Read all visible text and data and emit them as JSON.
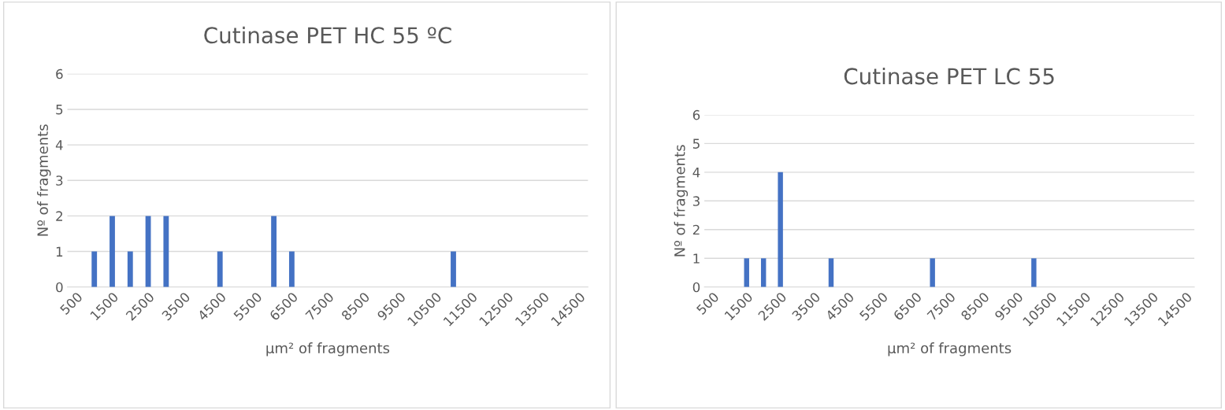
{
  "chart_data": [
    {
      "type": "bar",
      "title": "Cutinase PET HC 55 ºC",
      "xlabel": "μm² of fragments",
      "ylabel": "Nº of fragments",
      "color": "#4472c4",
      "categories": [
        "500",
        null,
        "1500",
        null,
        "2500",
        null,
        "3500",
        null,
        "4500",
        null,
        "5500",
        null,
        "6500",
        null,
        "7500",
        null,
        "8500",
        null,
        "9500",
        null,
        "10500",
        null,
        "11500",
        null,
        "12500",
        null,
        "13500",
        null,
        "14500"
      ],
      "values": [
        0,
        1,
        2,
        1,
        2,
        2,
        0,
        0,
        1,
        0,
        0,
        2,
        1,
        0,
        0,
        0,
        0,
        0,
        0,
        0,
        0,
        1,
        0,
        0,
        0,
        0,
        0,
        0,
        0
      ],
      "ylim": [
        0,
        6
      ],
      "yticks": [
        0,
        1,
        2,
        3,
        4,
        5,
        6
      ],
      "grid": "y"
    },
    {
      "type": "bar",
      "title": "Cutinase PET LC 55",
      "xlabel": "μm² of fragments",
      "ylabel": "Nº of fragments",
      "color": "#4472c4",
      "categories": [
        "500",
        null,
        "1500",
        null,
        "2500",
        null,
        "3500",
        null,
        "4500",
        null,
        "5500",
        null,
        "6500",
        null,
        "7500",
        null,
        "8500",
        null,
        "9500",
        null,
        "10500",
        null,
        "11500",
        null,
        "12500",
        null,
        "13500",
        null,
        "14500"
      ],
      "values": [
        0,
        0,
        1,
        1,
        4,
        0,
        0,
        1,
        0,
        0,
        0,
        0,
        0,
        1,
        0,
        0,
        0,
        0,
        0,
        1,
        0,
        0,
        0,
        0,
        0,
        0,
        0,
        0,
        0
      ],
      "ylim": [
        0,
        6
      ],
      "yticks": [
        0,
        1,
        2,
        3,
        4,
        5,
        6
      ],
      "grid": "y"
    }
  ]
}
